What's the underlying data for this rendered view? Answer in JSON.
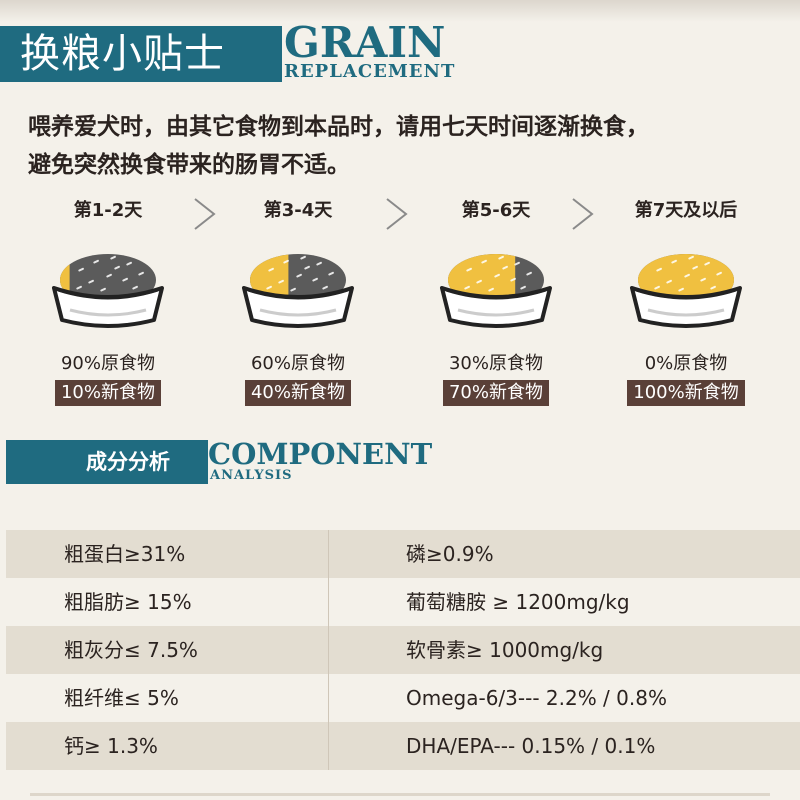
{
  "header1": {
    "title_cn": "换粮小贴士",
    "title_en_line1": "GRAIN",
    "title_en_line2": "REPLACEMENT"
  },
  "intro": {
    "line1": "喂养爱犬时，由其它食物到本品时，请用七天时间逐渐换食，",
    "line2": "避免突然换食带来的肠胃不适。"
  },
  "steps": [
    {
      "title": "第1-2天",
      "old": "90%原食物",
      "new": "10%新食物",
      "new_food_fraction": 0.1
    },
    {
      "title": "第3-4天",
      "old": "60%原食物",
      "new": "40%新食物",
      "new_food_fraction": 0.4
    },
    {
      "title": "第5-6天",
      "old": "30%原食物",
      "new": "70%新食物",
      "new_food_fraction": 0.7
    },
    {
      "title": "第7天及以后",
      "old": "0%原食物",
      "new": "100%新食物",
      "new_food_fraction": 1.0
    }
  ],
  "header2": {
    "title_cn": "成分分析",
    "title_en_line1": "COMPONENT",
    "title_en_line2": "ANALYSIS"
  },
  "components": [
    {
      "left": "粗蛋白≥31%",
      "right": "磷≥0.9%"
    },
    {
      "left": "粗脂肪≥ 15%",
      "right": "葡萄糖胺 ≥ 1200mg/kg"
    },
    {
      "left": "粗灰分≤ 7.5%",
      "right": "软骨素≥ 1000mg/kg"
    },
    {
      "left": "粗纤维≤ 5%",
      "right": "Omega-6/3--- 2.2% / 0.8%"
    },
    {
      "left": "钙≥ 1.3%",
      "right": "DHA/EPA--- 0.15%  / 0.1%"
    }
  ],
  "colors": {
    "accent": "#1f6b80",
    "label_bg": "#5a4038",
    "row_shade": "#e3ddd1",
    "old_food": "#5b5b5b",
    "new_food": "#f0c040"
  }
}
